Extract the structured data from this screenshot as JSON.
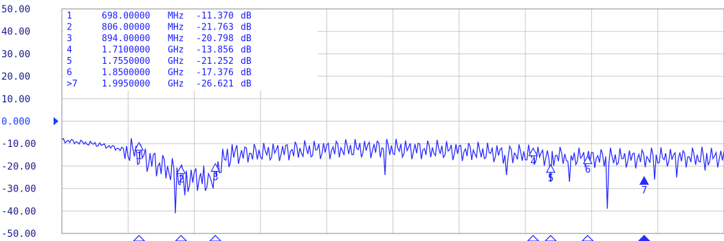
{
  "chart_data": {
    "type": "line",
    "title": "",
    "xlabel": "",
    "ylabel": "",
    "y_ticks": [
      "50.00",
      "40.00",
      "30.00",
      "20.00",
      "10.00",
      "0.000",
      "-10.00",
      "-20.00",
      "-30.00",
      "-40.00",
      "-50.00"
    ],
    "ylim": [
      -50,
      50
    ],
    "xlim_ghz": [
      0.5,
      2.2
    ],
    "reference_level": 0,
    "grid": true,
    "colors": {
      "trace": "#2a2aff",
      "text": "#1a1aff",
      "axis_text": "#1a1a8c",
      "grid": "#c8c8c8",
      "frame": "#8a8a8a"
    },
    "marker_table": [
      {
        "id": "1",
        "freq": "698.00000",
        "unit": "MHz",
        "value": "-11.370",
        "vunit": "dB"
      },
      {
        "id": "2",
        "freq": "806.00000",
        "unit": "MHz",
        "value": "-21.763",
        "vunit": "dB"
      },
      {
        "id": "3",
        "freq": "894.00000",
        "unit": "MHz",
        "value": "-20.798",
        "vunit": "dB"
      },
      {
        "id": "4",
        "freq": "1.7100000",
        "unit": "GHz",
        "value": "-13.856",
        "vunit": "dB"
      },
      {
        "id": "5",
        "freq": "1.7550000",
        "unit": "GHz",
        "value": "-21.252",
        "vunit": "dB"
      },
      {
        "id": "6",
        "freq": "1.8500000",
        "unit": "GHz",
        "value": "-17.376",
        "vunit": "dB"
      },
      {
        "id": ">7",
        "freq": "1.9950000",
        "unit": "GHz",
        "value": "-26.621",
        "vunit": "dB"
      }
    ],
    "markers": [
      {
        "label": "1",
        "freq_ghz": 0.698,
        "value_db": -11.37,
        "active": false
      },
      {
        "label": "2",
        "freq_ghz": 0.806,
        "value_db": -21.763,
        "active": false
      },
      {
        "label": "3",
        "freq_ghz": 0.894,
        "value_db": -20.798,
        "active": false
      },
      {
        "label": "4",
        "freq_ghz": 1.71,
        "value_db": -13.856,
        "active": false
      },
      {
        "label": "5",
        "freq_ghz": 1.755,
        "value_db": -21.252,
        "active": false
      },
      {
        "label": "6",
        "freq_ghz": 1.85,
        "value_db": -17.376,
        "active": false
      },
      {
        "label": "7",
        "freq_ghz": 1.995,
        "value_db": -26.621,
        "active": true
      }
    ],
    "trace_anchors": [
      {
        "freq_ghz": 0.5,
        "db": -8.5
      },
      {
        "freq_ghz": 0.6,
        "db": -10.5
      },
      {
        "freq_ghz": 0.68,
        "db": -13.5
      },
      {
        "freq_ghz": 0.78,
        "db": -22
      },
      {
        "freq_ghz": 0.82,
        "db": -26
      },
      {
        "freq_ghz": 0.88,
        "db": -24
      },
      {
        "freq_ghz": 0.93,
        "db": -15
      },
      {
        "freq_ghz": 1.1,
        "db": -13
      },
      {
        "freq_ghz": 1.3,
        "db": -12
      },
      {
        "freq_ghz": 1.5,
        "db": -13
      },
      {
        "freq_ghz": 1.7,
        "db": -15
      },
      {
        "freq_ghz": 1.9,
        "db": -16.5
      },
      {
        "freq_ghz": 2.2,
        "db": -16
      }
    ],
    "trace_dips": [
      {
        "freq_ghz": 0.79,
        "db": -41
      },
      {
        "freq_ghz": 0.815,
        "db": -33
      },
      {
        "freq_ghz": 0.87,
        "db": -31
      },
      {
        "freq_ghz": 0.89,
        "db": -30
      },
      {
        "freq_ghz": 1.33,
        "db": -24
      },
      {
        "freq_ghz": 1.64,
        "db": -24
      },
      {
        "freq_ghz": 1.755,
        "db": -27
      },
      {
        "freq_ghz": 1.805,
        "db": -27
      },
      {
        "freq_ghz": 1.9,
        "db": -39
      },
      {
        "freq_ghz": 2.02,
        "db": -26
      },
      {
        "freq_ghz": 2.08,
        "db": -25
      },
      {
        "freq_ghz": 2.15,
        "db": -22
      }
    ]
  }
}
